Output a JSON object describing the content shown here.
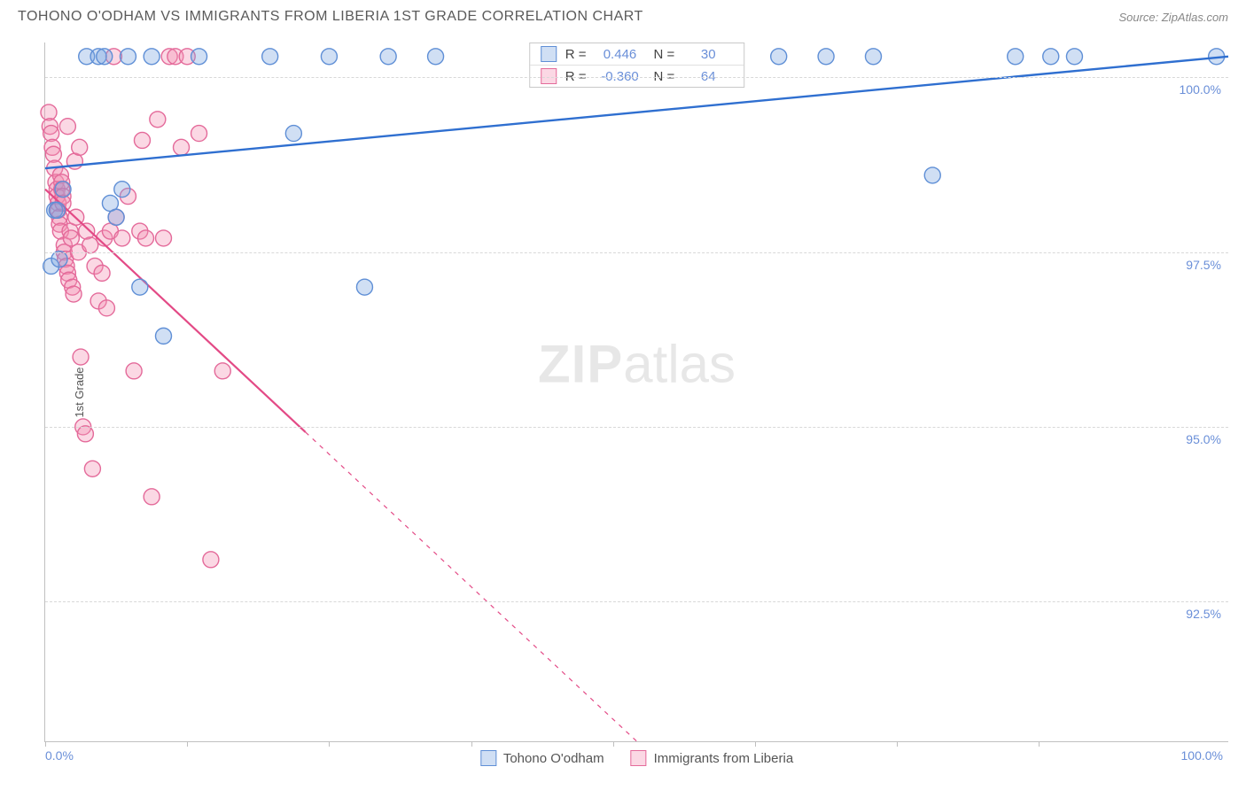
{
  "header": {
    "title": "TOHONO O'ODHAM VS IMMIGRANTS FROM LIBERIA 1ST GRADE CORRELATION CHART",
    "source": "Source: ZipAtlas.com"
  },
  "ylabel": "1st Grade",
  "watermark": {
    "bold": "ZIP",
    "rest": "atlas"
  },
  "chart": {
    "type": "scatter",
    "x_domain": [
      0,
      100
    ],
    "y_domain": [
      90.5,
      100.5
    ],
    "background_color": "#ffffff",
    "grid_color": "#d8d8d8",
    "axis_color": "#c0c0c0",
    "tick_label_color": "#6a8fd8",
    "marker_radius": 9,
    "marker_stroke_width": 1.4,
    "y_ticks": [
      {
        "value": 92.5,
        "label": "92.5%"
      },
      {
        "value": 95.0,
        "label": "95.0%"
      },
      {
        "value": 97.5,
        "label": "97.5%"
      },
      {
        "value": 100.0,
        "label": "100.0%"
      }
    ],
    "x_ticks_minor": [
      0,
      12,
      24,
      36,
      48,
      60,
      72,
      84
    ],
    "x_labels": [
      {
        "value": 0,
        "label": "0.0%",
        "align": "left"
      },
      {
        "value": 100,
        "label": "100.0%",
        "align": "right"
      }
    ],
    "series": {
      "tohono": {
        "label": "Tohono O'odham",
        "fill": "rgba(121,162,224,0.35)",
        "stroke": "#5f8fd6",
        "line_stroke": "#2f6fd0",
        "line_width": 2.4,
        "R": "0.446",
        "N": "30",
        "trend": {
          "x1": 0,
          "y1": 98.7,
          "x2": 100,
          "y2": 100.3,
          "dash_after_x": null
        },
        "points": [
          [
            0.5,
            97.3
          ],
          [
            0.8,
            98.1
          ],
          [
            1.0,
            98.1
          ],
          [
            1.2,
            97.4
          ],
          [
            1.5,
            98.4
          ],
          [
            3.5,
            100.3
          ],
          [
            4.5,
            100.3
          ],
          [
            5.0,
            100.3
          ],
          [
            5.5,
            98.2
          ],
          [
            6.0,
            98.0
          ],
          [
            6.5,
            98.4
          ],
          [
            7.0,
            100.3
          ],
          [
            8.0,
            97.0
          ],
          [
            9.0,
            100.3
          ],
          [
            10.0,
            96.3
          ],
          [
            13.0,
            100.3
          ],
          [
            19.0,
            100.3
          ],
          [
            21.0,
            99.2
          ],
          [
            24.0,
            100.3
          ],
          [
            27.0,
            97.0
          ],
          [
            29.0,
            100.3
          ],
          [
            33.0,
            100.3
          ],
          [
            62.0,
            100.3
          ],
          [
            66.0,
            100.3
          ],
          [
            70.0,
            100.3
          ],
          [
            75.0,
            98.6
          ],
          [
            82.0,
            100.3
          ],
          [
            85.0,
            100.3
          ],
          [
            87.0,
            100.3
          ],
          [
            99.0,
            100.3
          ]
        ]
      },
      "liberia": {
        "label": "Immigrants from Liberia",
        "fill": "rgba(244,143,177,0.35)",
        "stroke": "#e46a9a",
        "line_stroke": "#e34a86",
        "line_width": 2.2,
        "R": "-0.360",
        "N": "64",
        "trend": {
          "x1": 0,
          "y1": 98.4,
          "x2": 50,
          "y2": 90.5,
          "dash_after_x": 22
        },
        "points": [
          [
            0.3,
            99.5
          ],
          [
            0.4,
            99.3
          ],
          [
            0.5,
            99.2
          ],
          [
            0.6,
            99.0
          ],
          [
            0.7,
            98.9
          ],
          [
            0.8,
            98.7
          ],
          [
            0.9,
            98.5
          ],
          [
            1.0,
            98.4
          ],
          [
            1.0,
            98.3
          ],
          [
            1.1,
            98.2
          ],
          [
            1.1,
            98.1
          ],
          [
            1.2,
            98.0
          ],
          [
            1.2,
            97.9
          ],
          [
            1.3,
            97.8
          ],
          [
            1.3,
            98.6
          ],
          [
            1.4,
            98.5
          ],
          [
            1.4,
            98.4
          ],
          [
            1.5,
            98.3
          ],
          [
            1.5,
            98.2
          ],
          [
            1.6,
            97.6
          ],
          [
            1.6,
            97.5
          ],
          [
            1.7,
            97.4
          ],
          [
            1.8,
            97.3
          ],
          [
            1.9,
            97.2
          ],
          [
            2.0,
            97.1
          ],
          [
            2.1,
            97.8
          ],
          [
            2.2,
            97.7
          ],
          [
            2.3,
            97.0
          ],
          [
            2.4,
            96.9
          ],
          [
            2.5,
            98.8
          ],
          [
            2.6,
            98.0
          ],
          [
            2.8,
            97.5
          ],
          [
            3.0,
            96.0
          ],
          [
            3.2,
            95.0
          ],
          [
            3.4,
            94.9
          ],
          [
            3.5,
            97.8
          ],
          [
            3.8,
            97.6
          ],
          [
            4.0,
            94.4
          ],
          [
            4.2,
            97.3
          ],
          [
            4.5,
            96.8
          ],
          [
            4.8,
            97.2
          ],
          [
            5.0,
            97.7
          ],
          [
            5.2,
            96.7
          ],
          [
            5.5,
            97.8
          ],
          [
            5.8,
            100.3
          ],
          [
            6.0,
            98.0
          ],
          [
            6.5,
            97.7
          ],
          [
            7.0,
            98.3
          ],
          [
            7.5,
            95.8
          ],
          [
            8.0,
            97.8
          ],
          [
            8.5,
            97.7
          ],
          [
            9.0,
            94.0
          ],
          [
            9.5,
            99.4
          ],
          [
            10.0,
            97.7
          ],
          [
            10.5,
            100.3
          ],
          [
            11.0,
            100.3
          ],
          [
            11.5,
            99.0
          ],
          [
            12.0,
            100.3
          ],
          [
            13.0,
            99.2
          ],
          [
            14.0,
            93.1
          ],
          [
            15.0,
            95.8
          ],
          [
            8.2,
            99.1
          ],
          [
            2.9,
            99.0
          ],
          [
            1.9,
            99.3
          ]
        ]
      }
    }
  },
  "stats_box": {
    "row1": {
      "swatch_fill": "rgba(121,162,224,0.35)",
      "swatch_stroke": "#5f8fd6",
      "Rlabel": "R =",
      "R": "0.446",
      "Nlabel": "N =",
      "N": "30"
    },
    "row2": {
      "swatch_fill": "rgba(244,143,177,0.35)",
      "swatch_stroke": "#e46a9a",
      "Rlabel": "R =",
      "R": "-0.360",
      "Nlabel": "N =",
      "N": "64"
    }
  },
  "legend": {
    "item1": {
      "swatch_fill": "rgba(121,162,224,0.35)",
      "swatch_stroke": "#5f8fd6",
      "label": "Tohono O'odham"
    },
    "item2": {
      "swatch_fill": "rgba(244,143,177,0.35)",
      "swatch_stroke": "#e46a9a",
      "label": "Immigrants from Liberia"
    }
  }
}
